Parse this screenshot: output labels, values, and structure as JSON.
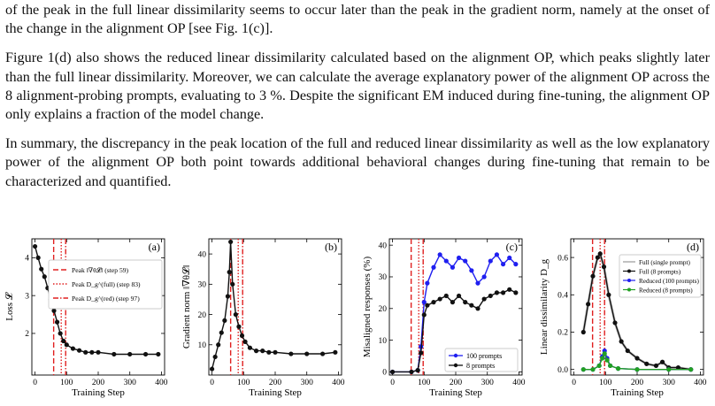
{
  "paragraphs": [
    {
      "text": "of the peak in the full linear dissimilarity seems to occur later than the peak in the gradient norm, namely at the onset of the change in the alignment OP [see Fig. 1(c)]."
    },
    {
      "text": "Figure 1(d) also shows the reduced linear dissimilarity calculated based on the alignment OP, which peaks slightly later than the full linear dissimilarity. Moreover, we can calculate the average explanatory power of the alignment OP across the 8 alignment-probing prompts, evaluating to 3 %. Despite the significant EM induced during fine-tuning, the alignment OP only explains a fraction of the model change."
    },
    {
      "text": "In summary, the discrepancy in the peak location of the full and reduced linear dissimilarity as well as the low explanatory power of the alignment OP both point towards additional behavioral changes during fine-tuning that remain to be characterized and quantified."
    }
  ],
  "colors": {
    "red": "#e02020",
    "black": "#111111",
    "blue": "#1f1ff0",
    "green": "#22a022",
    "gray": "#999999"
  },
  "chart_data": [
    {
      "type": "line",
      "panel_label": "(a)",
      "xlabel": "Training Step",
      "ylabel": "Loss 𝓛",
      "xlim": [
        -10,
        410
      ],
      "ylim": [
        0.9,
        4.5
      ],
      "xticks": [
        0,
        100,
        200,
        300,
        400
      ],
      "yticks": [
        2,
        3,
        4
      ],
      "vlines": [
        {
          "x": 59,
          "style": "dashed",
          "label": "Peak ‖∇θ𝓛‖ (step 59)"
        },
        {
          "x": 83,
          "style": "dotted",
          "label": "Peak D_g^(full) (step 83)"
        },
        {
          "x": 97,
          "style": "dashdot",
          "label": "Peak D_g^(red) (step 97)"
        }
      ],
      "legend_position": "top-right",
      "series": [
        {
          "x": [
            0,
            10,
            20,
            30,
            40,
            50,
            60,
            70,
            80,
            90,
            100,
            120,
            140,
            160,
            180,
            200,
            250,
            300,
            350,
            390
          ],
          "y": [
            4.3,
            4.0,
            3.7,
            3.5,
            3.2,
            2.9,
            2.6,
            2.3,
            2.0,
            1.8,
            1.7,
            1.6,
            1.55,
            1.5,
            1.5,
            1.5,
            1.45,
            1.45,
            1.45,
            1.45
          ]
        }
      ]
    },
    {
      "type": "line",
      "panel_label": "(b)",
      "xlabel": "Training Step",
      "ylabel": "Gradient norm ‖∇θ𝓛‖",
      "xlim": [
        -10,
        410
      ],
      "ylim": [
        0,
        45
      ],
      "xticks": [
        0,
        100,
        200,
        300,
        400
      ],
      "yticks": [
        10,
        20,
        30,
        40
      ],
      "vlines": [
        {
          "x": 59,
          "style": "dashed"
        },
        {
          "x": 83,
          "style": "dotted"
        },
        {
          "x": 97,
          "style": "dashdot"
        }
      ],
      "series": [
        {
          "x": [
            0,
            10,
            20,
            30,
            40,
            50,
            55,
            59,
            65,
            75,
            85,
            95,
            105,
            120,
            140,
            160,
            180,
            200,
            250,
            300,
            350,
            390
          ],
          "y": [
            2,
            6,
            10,
            14,
            18,
            26,
            34,
            44,
            30,
            20,
            16,
            13,
            11,
            9,
            8,
            8,
            7.5,
            7.5,
            7,
            7,
            7,
            7.5
          ]
        }
      ]
    },
    {
      "type": "line",
      "panel_label": "(c)",
      "xlabel": "Training Step",
      "ylabel": "Misaligned responses (%)",
      "xlim": [
        -10,
        410
      ],
      "ylim": [
        -1,
        42
      ],
      "xticks": [
        0,
        100,
        200,
        300,
        400
      ],
      "yticks": [
        0,
        10,
        20,
        30,
        40
      ],
      "vlines": [
        {
          "x": 59,
          "style": "dashed"
        },
        {
          "x": 83,
          "style": "dotted"
        },
        {
          "x": 97,
          "style": "dashdot"
        }
      ],
      "legend_position": "bottom-right",
      "series": [
        {
          "name": "100 prompts",
          "x": [
            0,
            60,
            80,
            90,
            100,
            110,
            130,
            150,
            170,
            190,
            210,
            230,
            250,
            270,
            290,
            310,
            330,
            350,
            370,
            390
          ],
          "y": [
            0,
            0,
            0.5,
            8,
            22,
            28,
            33,
            37,
            35,
            33,
            36,
            35,
            32,
            28,
            30,
            35,
            37,
            34,
            36,
            34
          ]
        },
        {
          "name": "8 prompts",
          "x": [
            0,
            60,
            80,
            90,
            100,
            110,
            130,
            150,
            170,
            190,
            210,
            230,
            250,
            270,
            290,
            310,
            330,
            350,
            370,
            390
          ],
          "y": [
            0,
            0,
            0.5,
            6,
            18,
            21,
            22,
            23,
            24,
            22,
            24,
            22,
            21,
            20,
            23,
            24,
            25,
            25,
            26,
            25
          ]
        }
      ]
    },
    {
      "type": "line",
      "panel_label": "(d)",
      "xlabel": "Training Step",
      "ylabel": "Linear dissimilarity D_g",
      "xlim": [
        -10,
        410
      ],
      "ylim": [
        -0.03,
        0.7
      ],
      "xticks": [
        0,
        100,
        200,
        300,
        400
      ],
      "yticks": [
        0.0,
        0.2,
        0.4,
        0.6
      ],
      "vlines": [
        {
          "x": 59,
          "style": "dashed"
        },
        {
          "x": 83,
          "style": "dotted"
        },
        {
          "x": 97,
          "style": "dashdot"
        }
      ],
      "legend_position": "top-right",
      "series": [
        {
          "name": "Full (single prompt)",
          "x": [
            30,
            45,
            60,
            75,
            83,
            95,
            110,
            130,
            150,
            170,
            200,
            230,
            260,
            280,
            300,
            330,
            370
          ],
          "y": [
            0.2,
            0.35,
            0.5,
            0.6,
            0.62,
            0.55,
            0.4,
            0.25,
            0.15,
            0.1,
            0.06,
            0.03,
            0.02,
            0.04,
            0.01,
            0.01,
            0.0
          ]
        },
        {
          "name": "Full (8 prompts)",
          "x": [
            30,
            45,
            60,
            75,
            83,
            95,
            110,
            130,
            150,
            170,
            200,
            230,
            260,
            280,
            300,
            330,
            370
          ],
          "y": [
            0.2,
            0.35,
            0.5,
            0.6,
            0.62,
            0.55,
            0.4,
            0.25,
            0.15,
            0.1,
            0.06,
            0.03,
            0.02,
            0.04,
            0.01,
            0.01,
            0.0
          ]
        },
        {
          "name": "Reduced (100 prompts)",
          "x": [
            30,
            60,
            80,
            90,
            97,
            105,
            115,
            140,
            200,
            300,
            370
          ],
          "y": [
            0.0,
            0.0,
            0.02,
            0.07,
            0.1,
            0.06,
            0.02,
            0.005,
            0.0,
            0.0,
            0.0
          ]
        },
        {
          "name": "Reduced (8 prompts)",
          "x": [
            30,
            60,
            80,
            90,
            97,
            105,
            115,
            140,
            200,
            300,
            370
          ],
          "y": [
            0.0,
            0.0,
            0.02,
            0.06,
            0.085,
            0.05,
            0.02,
            0.005,
            0.0,
            0.0,
            0.0
          ]
        }
      ]
    }
  ]
}
